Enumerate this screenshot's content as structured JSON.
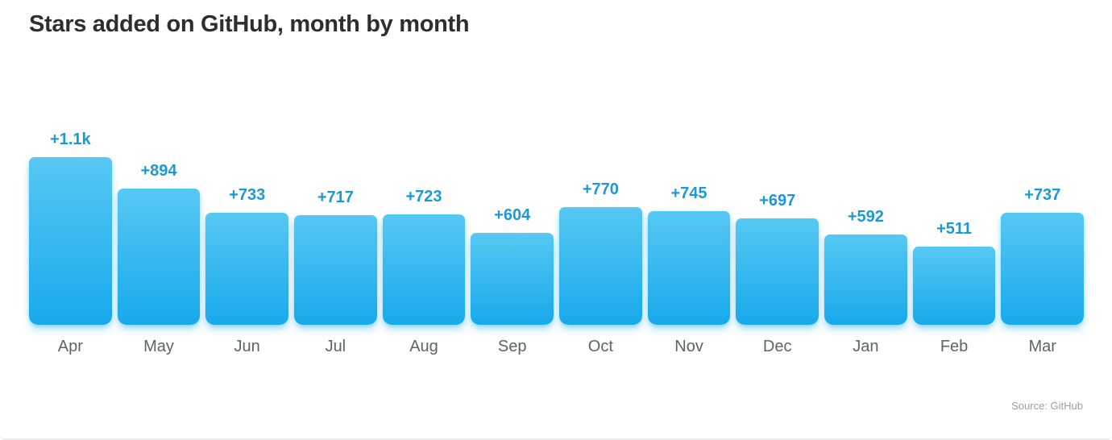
{
  "chart_data": {
    "type": "bar",
    "title": "Stars added on GitHub, month by month",
    "source_label": "Source: GitHub",
    "categories": [
      "Apr",
      "May",
      "Jun",
      "Jul",
      "Aug",
      "Sep",
      "Oct",
      "Nov",
      "Dec",
      "Jan",
      "Feb",
      "Mar"
    ],
    "values": [
      1100,
      894,
      733,
      717,
      723,
      604,
      770,
      745,
      697,
      592,
      511,
      737
    ],
    "value_labels": [
      "+1.1k",
      "+894",
      "+733",
      "+717",
      "+723",
      "+604",
      "+770",
      "+745",
      "+697",
      "+592",
      "+511",
      "+737"
    ],
    "xlabel": "",
    "ylabel": "",
    "ylim": [
      0,
      1100
    ],
    "grid": false,
    "legend": "none",
    "colors": {
      "bar_gradient_top": "#57c8f2",
      "bar_gradient_bottom": "#17a9ec",
      "value_label": "#1a9ad5",
      "month_label": "#5f6368",
      "title": "#2e2e2e",
      "source": "#9aa0a6"
    }
  }
}
